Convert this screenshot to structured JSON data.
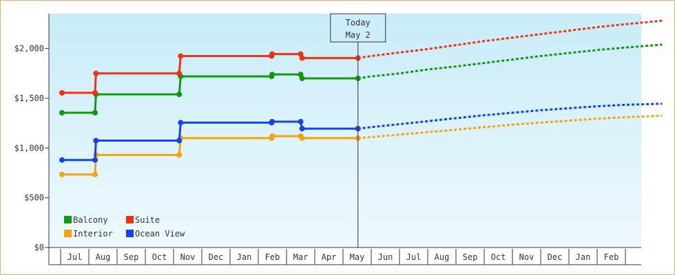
{
  "chart_data": {
    "type": "line",
    "title": "",
    "xlabel": "",
    "ylabel": "",
    "ylim": [
      0,
      2350
    ],
    "y_ticks": [
      {
        "value": 0,
        "label": "$0"
      },
      {
        "value": 500,
        "label": "$500"
      },
      {
        "value": 1000,
        "label": "$1,000"
      },
      {
        "value": 1500,
        "label": "$1,500"
      },
      {
        "value": 2000,
        "label": "$2,000"
      }
    ],
    "x_months": [
      "Jul",
      "Aug",
      "Sep",
      "Oct",
      "Nov",
      "Dec",
      "Jan",
      "Feb",
      "Mar",
      "Apr",
      "May",
      "Jun",
      "Jul",
      "Aug",
      "Sep",
      "Oct",
      "Nov",
      "Dec",
      "Jan",
      "Feb"
    ],
    "x_range": [
      -0.45,
      20.8
    ],
    "today": {
      "line1": "Today",
      "line2": "May 2",
      "x": 10.03
    },
    "grid": false,
    "legend_placement": "bottom-left",
    "series": [
      {
        "name": "Balcony",
        "color": "#119911",
        "points": [
          [
            -0.45,
            1355
          ],
          [
            0.72,
            1355
          ],
          [
            0.75,
            1540
          ],
          [
            3.7,
            1540
          ],
          [
            3.75,
            1720
          ],
          [
            6.97,
            1720
          ],
          [
            6.99,
            1740
          ],
          [
            8.0,
            1740
          ],
          [
            8.05,
            1700
          ],
          [
            10.03,
            1700
          ]
        ],
        "forecast": [
          [
            10.03,
            1700
          ],
          [
            10.5,
            1720
          ],
          [
            11.5,
            1750
          ],
          [
            12.5,
            1790
          ],
          [
            13.5,
            1820
          ],
          [
            14.5,
            1855
          ],
          [
            15.5,
            1890
          ],
          [
            16.5,
            1925
          ],
          [
            17.5,
            1955
          ],
          [
            18.5,
            1985
          ],
          [
            19.5,
            2010
          ],
          [
            20.8,
            2040
          ]
        ]
      },
      {
        "name": "Suite",
        "color": "#ee3311",
        "points": [
          [
            -0.45,
            1555
          ],
          [
            0.72,
            1555
          ],
          [
            0.75,
            1750
          ],
          [
            3.7,
            1750
          ],
          [
            3.75,
            1925
          ],
          [
            6.97,
            1925
          ],
          [
            6.99,
            1945
          ],
          [
            8.0,
            1945
          ],
          [
            8.05,
            1905
          ],
          [
            10.03,
            1905
          ]
        ],
        "forecast": [
          [
            10.03,
            1905
          ],
          [
            10.5,
            1925
          ],
          [
            11.5,
            1960
          ],
          [
            12.5,
            1995
          ],
          [
            13.5,
            2035
          ],
          [
            14.5,
            2075
          ],
          [
            15.5,
            2110
          ],
          [
            16.5,
            2145
          ],
          [
            17.5,
            2180
          ],
          [
            18.5,
            2215
          ],
          [
            19.5,
            2245
          ],
          [
            20.8,
            2280
          ]
        ]
      },
      {
        "name": "Interior",
        "color": "#f5a30a",
        "points": [
          [
            -0.45,
            735
          ],
          [
            0.72,
            735
          ],
          [
            0.75,
            930
          ],
          [
            3.7,
            930
          ],
          [
            3.75,
            1100
          ],
          [
            6.97,
            1100
          ],
          [
            6.99,
            1120
          ],
          [
            8.0,
            1120
          ],
          [
            8.05,
            1100
          ],
          [
            10.03,
            1100
          ]
        ],
        "forecast": [
          [
            10.03,
            1100
          ],
          [
            10.5,
            1110
          ],
          [
            11.5,
            1135
          ],
          [
            12.5,
            1160
          ],
          [
            13.5,
            1185
          ],
          [
            14.5,
            1210
          ],
          [
            15.5,
            1235
          ],
          [
            16.5,
            1255
          ],
          [
            17.5,
            1275
          ],
          [
            18.5,
            1295
          ],
          [
            19.5,
            1310
          ],
          [
            20.8,
            1325
          ]
        ]
      },
      {
        "name": "Ocean View",
        "color": "#1144ee",
        "points": [
          [
            -0.45,
            880
          ],
          [
            0.72,
            880
          ],
          [
            0.75,
            1075
          ],
          [
            3.7,
            1075
          ],
          [
            3.75,
            1255
          ],
          [
            6.97,
            1255
          ],
          [
            6.99,
            1265
          ],
          [
            8.0,
            1265
          ],
          [
            8.05,
            1195
          ],
          [
            10.03,
            1195
          ]
        ],
        "forecast": [
          [
            10.03,
            1195
          ],
          [
            10.5,
            1210
          ],
          [
            11.5,
            1240
          ],
          [
            12.5,
            1270
          ],
          [
            13.5,
            1300
          ],
          [
            14.5,
            1330
          ],
          [
            15.5,
            1355
          ],
          [
            16.5,
            1380
          ],
          [
            17.5,
            1400
          ],
          [
            18.5,
            1420
          ],
          [
            19.5,
            1435
          ],
          [
            20.8,
            1445
          ]
        ]
      }
    ]
  }
}
